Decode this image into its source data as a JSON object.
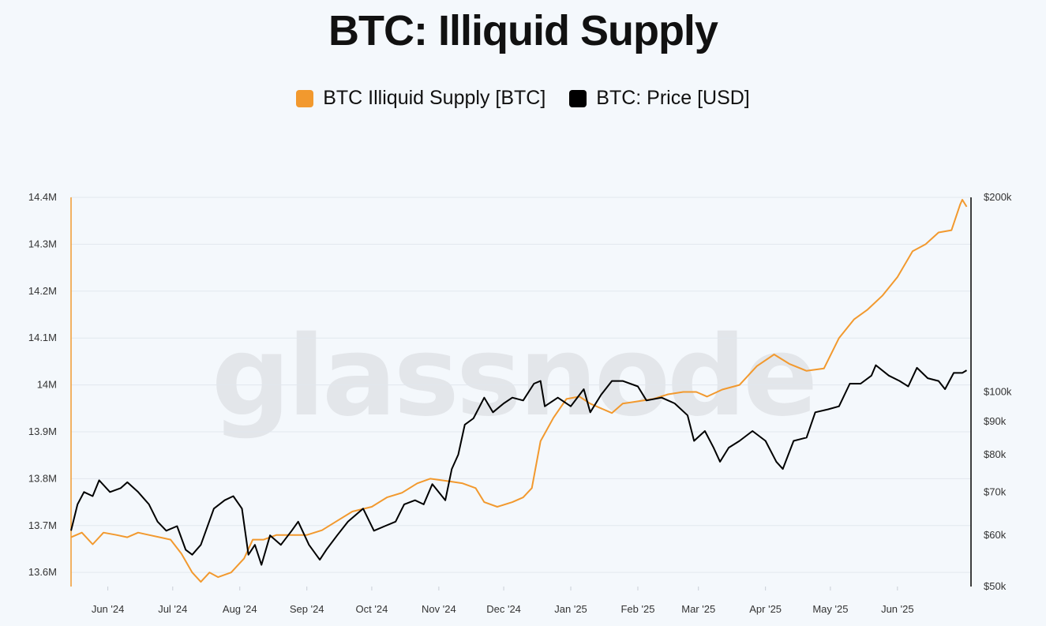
{
  "watermark": "glassnode",
  "chart_data": {
    "type": "line",
    "title": "BTC: Illiquid Supply",
    "legend_position": "top-center",
    "grid": true,
    "x_range": [
      "2024-05-15",
      "2025-07-05"
    ],
    "x_ticks": [
      {
        "date": "2024-06-01",
        "label": "Jun '24"
      },
      {
        "date": "2024-07-01",
        "label": "Jul '24"
      },
      {
        "date": "2024-08-01",
        "label": "Aug '24"
      },
      {
        "date": "2024-09-01",
        "label": "Sep '24"
      },
      {
        "date": "2024-10-01",
        "label": "Oct '24"
      },
      {
        "date": "2024-11-01",
        "label": "Nov '24"
      },
      {
        "date": "2024-12-01",
        "label": "Dec '24"
      },
      {
        "date": "2025-01-01",
        "label": "Jan '25"
      },
      {
        "date": "2025-02-01",
        "label": "Feb '25"
      },
      {
        "date": "2025-03-01",
        "label": "Mar '25"
      },
      {
        "date": "2025-04-01",
        "label": "Apr '25"
      },
      {
        "date": "2025-05-01",
        "label": "May '25"
      },
      {
        "date": "2025-06-01",
        "label": "Jun '25"
      }
    ],
    "y_left": {
      "range": [
        13.57,
        14.4
      ],
      "unit": "M BTC",
      "ticks": [
        {
          "value": 13.6,
          "label": "13.6M"
        },
        {
          "value": 13.7,
          "label": "13.7M"
        },
        {
          "value": 13.8,
          "label": "13.8M"
        },
        {
          "value": 13.9,
          "label": "13.9M"
        },
        {
          "value": 14.0,
          "label": "14M"
        },
        {
          "value": 14.1,
          "label": "14.1M"
        },
        {
          "value": 14.2,
          "label": "14.2M"
        },
        {
          "value": 14.3,
          "label": "14.3M"
        },
        {
          "value": 14.4,
          "label": "14.4M"
        }
      ]
    },
    "y_right": {
      "scale": "log",
      "range": [
        50,
        200
      ],
      "unit": "k USD",
      "ticks": [
        {
          "value": 50,
          "label": "$50k"
        },
        {
          "value": 60,
          "label": "$60k"
        },
        {
          "value": 70,
          "label": "$70k"
        },
        {
          "value": 80,
          "label": "$80k"
        },
        {
          "value": 90,
          "label": "$90k"
        },
        {
          "value": 100,
          "label": "$100k"
        },
        {
          "value": 200,
          "label": "$200k"
        }
      ]
    },
    "series": [
      {
        "name": "BTC Illiquid Supply [BTC]",
        "axis": "left",
        "color": "#f2992e",
        "points": [
          [
            "2024-05-15",
            13.675
          ],
          [
            "2024-05-20",
            13.685
          ],
          [
            "2024-05-25",
            13.66
          ],
          [
            "2024-05-30",
            13.685
          ],
          [
            "2024-06-05",
            13.68
          ],
          [
            "2024-06-10",
            13.675
          ],
          [
            "2024-06-15",
            13.685
          ],
          [
            "2024-06-20",
            13.68
          ],
          [
            "2024-06-25",
            13.675
          ],
          [
            "2024-06-30",
            13.67
          ],
          [
            "2024-07-05",
            13.64
          ],
          [
            "2024-07-10",
            13.6
          ],
          [
            "2024-07-14",
            13.58
          ],
          [
            "2024-07-18",
            13.6
          ],
          [
            "2024-07-22",
            13.59
          ],
          [
            "2024-07-28",
            13.6
          ],
          [
            "2024-08-03",
            13.63
          ],
          [
            "2024-08-07",
            13.67
          ],
          [
            "2024-08-12",
            13.67
          ],
          [
            "2024-08-18",
            13.68
          ],
          [
            "2024-08-25",
            13.68
          ],
          [
            "2024-09-01",
            13.68
          ],
          [
            "2024-09-08",
            13.69
          ],
          [
            "2024-09-15",
            13.71
          ],
          [
            "2024-09-22",
            13.73
          ],
          [
            "2024-10-01",
            13.74
          ],
          [
            "2024-10-08",
            13.76
          ],
          [
            "2024-10-15",
            13.77
          ],
          [
            "2024-10-22",
            13.79
          ],
          [
            "2024-10-28",
            13.8
          ],
          [
            "2024-11-05",
            13.795
          ],
          [
            "2024-11-12",
            13.79
          ],
          [
            "2024-11-18",
            13.78
          ],
          [
            "2024-11-22",
            13.75
          ],
          [
            "2024-11-28",
            13.74
          ],
          [
            "2024-12-05",
            13.75
          ],
          [
            "2024-12-10",
            13.76
          ],
          [
            "2024-12-14",
            13.78
          ],
          [
            "2024-12-18",
            13.88
          ],
          [
            "2024-12-24",
            13.93
          ],
          [
            "2024-12-30",
            13.97
          ],
          [
            "2025-01-05",
            13.975
          ],
          [
            "2025-01-10",
            13.96
          ],
          [
            "2025-01-15",
            13.95
          ],
          [
            "2025-01-20",
            13.94
          ],
          [
            "2025-01-25",
            13.96
          ],
          [
            "2025-02-01",
            13.965
          ],
          [
            "2025-02-08",
            13.97
          ],
          [
            "2025-02-15",
            13.98
          ],
          [
            "2025-02-22",
            13.985
          ],
          [
            "2025-02-28",
            13.985
          ],
          [
            "2025-03-05",
            13.975
          ],
          [
            "2025-03-12",
            13.99
          ],
          [
            "2025-03-20",
            14.0
          ],
          [
            "2025-03-28",
            14.04
          ],
          [
            "2025-04-05",
            14.065
          ],
          [
            "2025-04-12",
            14.045
          ],
          [
            "2025-04-20",
            14.03
          ],
          [
            "2025-04-28",
            14.035
          ],
          [
            "2025-05-05",
            14.1
          ],
          [
            "2025-05-12",
            14.14
          ],
          [
            "2025-05-18",
            14.16
          ],
          [
            "2025-05-25",
            14.19
          ],
          [
            "2025-06-01",
            14.23
          ],
          [
            "2025-06-08",
            14.285
          ],
          [
            "2025-06-14",
            14.3
          ],
          [
            "2025-06-20",
            14.325
          ],
          [
            "2025-06-26",
            14.33
          ],
          [
            "2025-06-30",
            14.385
          ],
          [
            "2025-07-01",
            14.395
          ],
          [
            "2025-07-03",
            14.38
          ]
        ]
      },
      {
        "name": "BTC: Price [USD]",
        "axis": "right",
        "color": "#000000",
        "points": [
          [
            "2024-05-15",
            61
          ],
          [
            "2024-05-18",
            67
          ],
          [
            "2024-05-21",
            70
          ],
          [
            "2024-05-25",
            69
          ],
          [
            "2024-05-28",
            73
          ],
          [
            "2024-06-02",
            70
          ],
          [
            "2024-06-07",
            71
          ],
          [
            "2024-06-10",
            72.5
          ],
          [
            "2024-06-15",
            70
          ],
          [
            "2024-06-20",
            67
          ],
          [
            "2024-06-24",
            63
          ],
          [
            "2024-06-28",
            61
          ],
          [
            "2024-07-03",
            62
          ],
          [
            "2024-07-07",
            57
          ],
          [
            "2024-07-10",
            56
          ],
          [
            "2024-07-14",
            58
          ],
          [
            "2024-07-20",
            66
          ],
          [
            "2024-07-25",
            68
          ],
          [
            "2024-07-29",
            69
          ],
          [
            "2024-08-02",
            66
          ],
          [
            "2024-08-05",
            56
          ],
          [
            "2024-08-08",
            58
          ],
          [
            "2024-08-11",
            54
          ],
          [
            "2024-08-15",
            60
          ],
          [
            "2024-08-20",
            58
          ],
          [
            "2024-08-25",
            61
          ],
          [
            "2024-08-28",
            63
          ],
          [
            "2024-09-02",
            58
          ],
          [
            "2024-09-07",
            55
          ],
          [
            "2024-09-10",
            57
          ],
          [
            "2024-09-15",
            60
          ],
          [
            "2024-09-20",
            63
          ],
          [
            "2024-09-27",
            66
          ],
          [
            "2024-10-02",
            61
          ],
          [
            "2024-10-07",
            62
          ],
          [
            "2024-10-12",
            63
          ],
          [
            "2024-10-16",
            67
          ],
          [
            "2024-10-21",
            68
          ],
          [
            "2024-10-25",
            67
          ],
          [
            "2024-10-29",
            72
          ],
          [
            "2024-11-04",
            68
          ],
          [
            "2024-11-07",
            76
          ],
          [
            "2024-11-10",
            80
          ],
          [
            "2024-11-13",
            89
          ],
          [
            "2024-11-17",
            91
          ],
          [
            "2024-11-22",
            98
          ],
          [
            "2024-11-26",
            93
          ],
          [
            "2024-12-01",
            96
          ],
          [
            "2024-12-05",
            98
          ],
          [
            "2024-12-10",
            97
          ],
          [
            "2024-12-15",
            103
          ],
          [
            "2024-12-18",
            104
          ],
          [
            "2024-12-20",
            95
          ],
          [
            "2024-12-26",
            98
          ],
          [
            "2025-01-01",
            95
          ],
          [
            "2025-01-07",
            101
          ],
          [
            "2025-01-10",
            93
          ],
          [
            "2025-01-15",
            99
          ],
          [
            "2025-01-20",
            104
          ],
          [
            "2025-01-25",
            104
          ],
          [
            "2025-02-01",
            102
          ],
          [
            "2025-02-05",
            97
          ],
          [
            "2025-02-12",
            98
          ],
          [
            "2025-02-18",
            96
          ],
          [
            "2025-02-24",
            92
          ],
          [
            "2025-02-27",
            84
          ],
          [
            "2025-03-04",
            87
          ],
          [
            "2025-03-08",
            82
          ],
          [
            "2025-03-11",
            78
          ],
          [
            "2025-03-15",
            82
          ],
          [
            "2025-03-20",
            84
          ],
          [
            "2025-03-26",
            87
          ],
          [
            "2025-04-01",
            84
          ],
          [
            "2025-04-06",
            78
          ],
          [
            "2025-04-09",
            76
          ],
          [
            "2025-04-14",
            84
          ],
          [
            "2025-04-20",
            85
          ],
          [
            "2025-04-24",
            93
          ],
          [
            "2025-04-30",
            94
          ],
          [
            "2025-05-05",
            95
          ],
          [
            "2025-05-10",
            103
          ],
          [
            "2025-05-15",
            103
          ],
          [
            "2025-05-20",
            106
          ],
          [
            "2025-05-22",
            110
          ],
          [
            "2025-05-28",
            106
          ],
          [
            "2025-06-02",
            104
          ],
          [
            "2025-06-06",
            102
          ],
          [
            "2025-06-10",
            109
          ],
          [
            "2025-06-15",
            105
          ],
          [
            "2025-06-20",
            104
          ],
          [
            "2025-06-23",
            101
          ],
          [
            "2025-06-27",
            107
          ],
          [
            "2025-07-01",
            107
          ],
          [
            "2025-07-03",
            108
          ]
        ]
      }
    ]
  }
}
